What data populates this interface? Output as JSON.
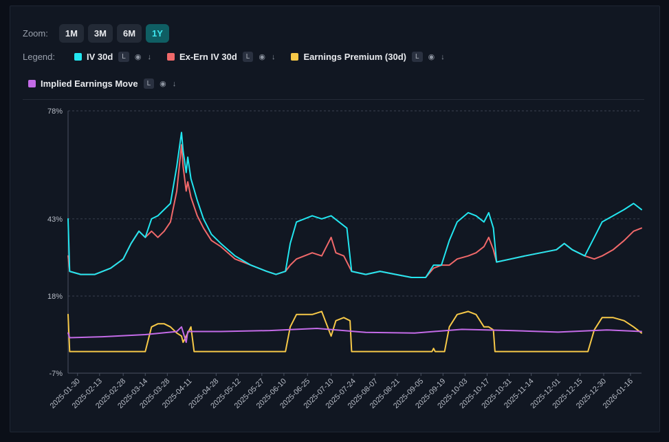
{
  "controls": {
    "zoom_label": "Zoom:",
    "zoom_options": [
      "1M",
      "3M",
      "6M",
      "1Y"
    ],
    "zoom_active": "1Y",
    "legend_label": "Legend:"
  },
  "legend": [
    {
      "name": "IV 30d",
      "color": "#22e6f0",
      "tag": "L"
    },
    {
      "name": "Ex-Ern IV 30d",
      "color": "#f0696a",
      "tag": "L"
    },
    {
      "name": "Earnings Premium (30d)",
      "color": "#f7c948",
      "tag": "L"
    },
    {
      "name": "Implied Earnings Move",
      "color": "#c46be8",
      "tag": "L"
    }
  ],
  "chart_data": {
    "type": "line",
    "title": "",
    "xlabel": "",
    "ylabel": "",
    "ylim": [
      -7,
      78
    ],
    "y_ticks": [
      "78%",
      "43%",
      "18%",
      "-7%"
    ],
    "y_tick_values": [
      78,
      43,
      18,
      -7
    ],
    "x_date_range": [
      "2025-01-24",
      "2026-01-23"
    ],
    "x_ticks": [
      "2025-01-30",
      "2025-02-13",
      "2025-02-28",
      "2025-03-14",
      "2025-03-28",
      "2025-04-11",
      "2025-04-28",
      "2025-05-12",
      "2025-05-27",
      "2025-06-10",
      "2025-06-25",
      "2025-07-10",
      "2025-07-24",
      "2025-08-07",
      "2025-08-21",
      "2025-09-05",
      "2025-09-19",
      "2025-10-03",
      "2025-10-17",
      "2025-10-31",
      "2025-11-14",
      "2025-12-01",
      "2025-12-15",
      "2025-12-30",
      "2026-01-16"
    ],
    "series": [
      {
        "name": "IV 30d",
        "color": "#22e6f0",
        "points": [
          [
            "2025-01-24",
            43
          ],
          [
            "2025-01-25",
            26
          ],
          [
            "2025-02-01",
            25
          ],
          [
            "2025-02-10",
            25
          ],
          [
            "2025-02-20",
            27
          ],
          [
            "2025-02-28",
            30
          ],
          [
            "2025-03-05",
            35
          ],
          [
            "2025-03-10",
            39
          ],
          [
            "2025-03-14",
            37
          ],
          [
            "2025-03-18",
            43
          ],
          [
            "2025-03-22",
            44
          ],
          [
            "2025-03-26",
            46
          ],
          [
            "2025-03-30",
            48
          ],
          [
            "2025-04-03",
            60
          ],
          [
            "2025-04-06",
            71
          ],
          [
            "2025-04-07",
            65
          ],
          [
            "2025-04-09",
            58
          ],
          [
            "2025-04-10",
            63
          ],
          [
            "2025-04-12",
            56
          ],
          [
            "2025-04-16",
            49
          ],
          [
            "2025-04-20",
            43
          ],
          [
            "2025-04-25",
            38
          ],
          [
            "2025-05-01",
            35
          ],
          [
            "2025-05-10",
            31
          ],
          [
            "2025-05-20",
            28
          ],
          [
            "2025-05-30",
            26
          ],
          [
            "2025-06-05",
            25
          ],
          [
            "2025-06-11",
            26
          ],
          [
            "2025-06-14",
            35
          ],
          [
            "2025-06-18",
            42
          ],
          [
            "2025-06-23",
            43
          ],
          [
            "2025-06-28",
            44
          ],
          [
            "2025-07-04",
            43
          ],
          [
            "2025-07-10",
            44
          ],
          [
            "2025-07-15",
            42
          ],
          [
            "2025-07-20",
            40
          ],
          [
            "2025-07-23",
            26
          ],
          [
            "2025-08-01",
            25
          ],
          [
            "2025-08-10",
            26
          ],
          [
            "2025-08-20",
            25
          ],
          [
            "2025-08-30",
            24
          ],
          [
            "2025-09-08",
            24
          ],
          [
            "2025-09-13",
            28
          ],
          [
            "2025-09-18",
            28
          ],
          [
            "2025-09-23",
            36
          ],
          [
            "2025-09-28",
            42
          ],
          [
            "2025-10-05",
            45
          ],
          [
            "2025-10-10",
            44
          ],
          [
            "2025-10-15",
            42
          ],
          [
            "2025-10-18",
            45
          ],
          [
            "2025-10-21",
            40
          ],
          [
            "2025-10-23",
            29
          ],
          [
            "2025-11-01",
            30
          ],
          [
            "2025-11-10",
            31
          ],
          [
            "2025-11-20",
            32
          ],
          [
            "2025-11-30",
            33
          ],
          [
            "2025-12-05",
            35
          ],
          [
            "2025-12-10",
            33
          ],
          [
            "2025-12-18",
            31
          ],
          [
            "2025-12-24",
            37
          ],
          [
            "2025-12-29",
            42
          ],
          [
            "2026-01-05",
            44
          ],
          [
            "2026-01-12",
            46
          ],
          [
            "2026-01-18",
            48
          ],
          [
            "2026-01-23",
            46
          ]
        ]
      },
      {
        "name": "Ex-Ern IV 30d",
        "color": "#f0696a",
        "points": [
          [
            "2025-01-24",
            31
          ],
          [
            "2025-01-25",
            26
          ],
          [
            "2025-02-01",
            25
          ],
          [
            "2025-02-10",
            25
          ],
          [
            "2025-02-20",
            27
          ],
          [
            "2025-02-28",
            30
          ],
          [
            "2025-03-05",
            35
          ],
          [
            "2025-03-10",
            39
          ],
          [
            "2025-03-14",
            37
          ],
          [
            "2025-03-18",
            39
          ],
          [
            "2025-03-22",
            37
          ],
          [
            "2025-03-26",
            39
          ],
          [
            "2025-03-30",
            42
          ],
          [
            "2025-04-03",
            52
          ],
          [
            "2025-04-06",
            67
          ],
          [
            "2025-04-07",
            60
          ],
          [
            "2025-04-09",
            52
          ],
          [
            "2025-04-10",
            55
          ],
          [
            "2025-04-12",
            50
          ],
          [
            "2025-04-16",
            44
          ],
          [
            "2025-04-20",
            40
          ],
          [
            "2025-04-25",
            36
          ],
          [
            "2025-05-01",
            34
          ],
          [
            "2025-05-10",
            30
          ],
          [
            "2025-05-20",
            28
          ],
          [
            "2025-05-30",
            26
          ],
          [
            "2025-06-05",
            25
          ],
          [
            "2025-06-11",
            26
          ],
          [
            "2025-06-14",
            28
          ],
          [
            "2025-06-18",
            30
          ],
          [
            "2025-06-23",
            31
          ],
          [
            "2025-06-28",
            32
          ],
          [
            "2025-07-04",
            31
          ],
          [
            "2025-07-10",
            37
          ],
          [
            "2025-07-13",
            32
          ],
          [
            "2025-07-18",
            31
          ],
          [
            "2025-07-23",
            26
          ],
          [
            "2025-08-01",
            25
          ],
          [
            "2025-08-10",
            26
          ],
          [
            "2025-08-20",
            25
          ],
          [
            "2025-08-30",
            24
          ],
          [
            "2025-09-08",
            24
          ],
          [
            "2025-09-13",
            27
          ],
          [
            "2025-09-18",
            28
          ],
          [
            "2025-09-23",
            28
          ],
          [
            "2025-09-28",
            30
          ],
          [
            "2025-10-05",
            31
          ],
          [
            "2025-10-10",
            32
          ],
          [
            "2025-10-15",
            34
          ],
          [
            "2025-10-18",
            37
          ],
          [
            "2025-10-21",
            33
          ],
          [
            "2025-10-23",
            29
          ],
          [
            "2025-11-01",
            30
          ],
          [
            "2025-11-10",
            31
          ],
          [
            "2025-11-20",
            32
          ],
          [
            "2025-11-30",
            33
          ],
          [
            "2025-12-05",
            35
          ],
          [
            "2025-12-10",
            33
          ],
          [
            "2025-12-18",
            31
          ],
          [
            "2025-12-24",
            30
          ],
          [
            "2025-12-29",
            31
          ],
          [
            "2026-01-05",
            33
          ],
          [
            "2026-01-12",
            36
          ],
          [
            "2026-01-18",
            39
          ],
          [
            "2026-01-23",
            40
          ]
        ]
      },
      {
        "name": "Earnings Premium (30d)",
        "color": "#f7c948",
        "points": [
          [
            "2025-01-24",
            12
          ],
          [
            "2025-01-25",
            0
          ],
          [
            "2025-03-14",
            0
          ],
          [
            "2025-03-18",
            8
          ],
          [
            "2025-03-22",
            9
          ],
          [
            "2025-03-26",
            9
          ],
          [
            "2025-03-30",
            8
          ],
          [
            "2025-04-03",
            6
          ],
          [
            "2025-04-06",
            5
          ],
          [
            "2025-04-07",
            3
          ],
          [
            "2025-04-09",
            5
          ],
          [
            "2025-04-10",
            6
          ],
          [
            "2025-04-12",
            8
          ],
          [
            "2025-04-14",
            0
          ],
          [
            "2025-06-11",
            0
          ],
          [
            "2025-06-14",
            8
          ],
          [
            "2025-06-18",
            12
          ],
          [
            "2025-06-23",
            12
          ],
          [
            "2025-06-28",
            12
          ],
          [
            "2025-07-04",
            13
          ],
          [
            "2025-07-10",
            5
          ],
          [
            "2025-07-13",
            10
          ],
          [
            "2025-07-18",
            11
          ],
          [
            "2025-07-22",
            10
          ],
          [
            "2025-07-23",
            0
          ],
          [
            "2025-09-12",
            0
          ],
          [
            "2025-09-13",
            1
          ],
          [
            "2025-09-14",
            0
          ],
          [
            "2025-09-20",
            0
          ],
          [
            "2025-09-23",
            8
          ],
          [
            "2025-09-28",
            12
          ],
          [
            "2025-10-05",
            13
          ],
          [
            "2025-10-10",
            12
          ],
          [
            "2025-10-15",
            8
          ],
          [
            "2025-10-18",
            8
          ],
          [
            "2025-10-21",
            7
          ],
          [
            "2025-10-22",
            0
          ],
          [
            "2025-12-20",
            0
          ],
          [
            "2025-12-24",
            7
          ],
          [
            "2025-12-29",
            11
          ],
          [
            "2026-01-05",
            11
          ],
          [
            "2026-01-12",
            10
          ],
          [
            "2026-01-18",
            8
          ],
          [
            "2026-01-23",
            6
          ]
        ]
      },
      {
        "name": "Implied Earnings Move",
        "color": "#c46be8",
        "points": [
          [
            "2025-01-24",
            6
          ],
          [
            "2025-01-25",
            4.5
          ],
          [
            "2025-02-15",
            4.8
          ],
          [
            "2025-03-14",
            5.5
          ],
          [
            "2025-04-03",
            6.5
          ],
          [
            "2025-04-06",
            8
          ],
          [
            "2025-04-09",
            3
          ],
          [
            "2025-04-10",
            6.5
          ],
          [
            "2025-05-01",
            6.5
          ],
          [
            "2025-06-01",
            6.8
          ],
          [
            "2025-07-01",
            7.5
          ],
          [
            "2025-08-01",
            6.2
          ],
          [
            "2025-09-01",
            6
          ],
          [
            "2025-10-01",
            7.2
          ],
          [
            "2025-11-01",
            6.8
          ],
          [
            "2025-12-01",
            6.3
          ],
          [
            "2026-01-01",
            7
          ],
          [
            "2026-01-23",
            6.5
          ]
        ]
      }
    ]
  }
}
